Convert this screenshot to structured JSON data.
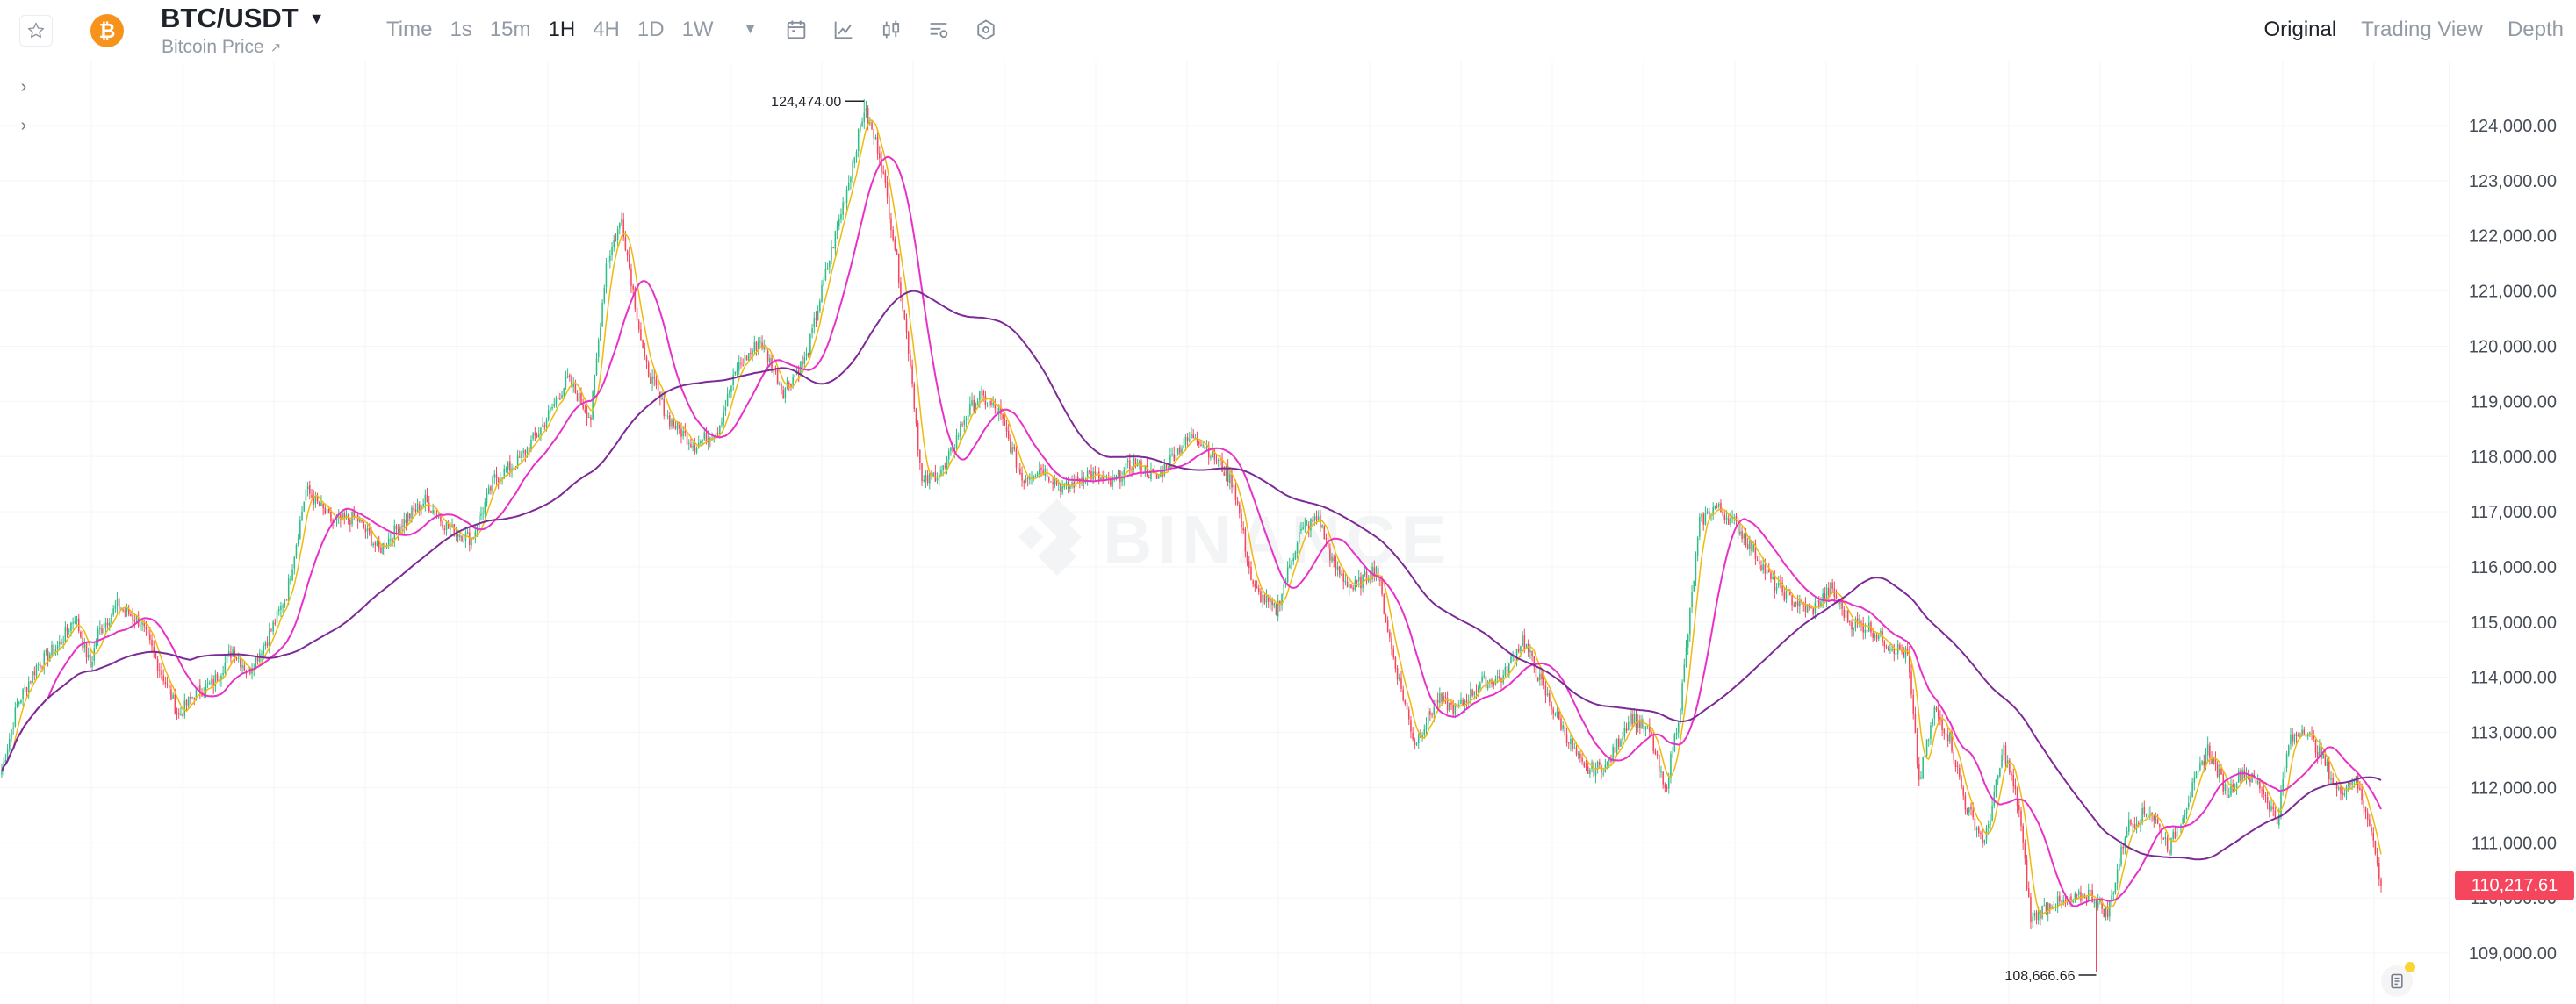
{
  "header": {
    "symbol": "BTC/USDT",
    "subtitle": "Bitcoin Price",
    "subtitle_icon": "external-link-icon",
    "favorite_icon": "star-icon",
    "coin_icon": "bitcoin-icon",
    "coin_glyph": "₿",
    "intervals": [
      "Time",
      "1s",
      "15m",
      "1H",
      "4H",
      "1D",
      "1W"
    ],
    "active_interval": "1H",
    "toolbar_icons": [
      "calendar-icon",
      "indicator-icon",
      "candle-type-icon",
      "chart-settings-icon",
      "hexagon-settings-icon"
    ],
    "view_tabs": [
      "Original",
      "Trading View",
      "Depth"
    ],
    "active_view": "Original"
  },
  "watermark": "BINANCE",
  "colors": {
    "up": "#2ebd85",
    "down": "#f6465d",
    "ma_fast": "#f0b90b",
    "ma_mid": "#e831c6",
    "ma_slow": "#7e2a96",
    "price_tag": "#f6465d"
  },
  "price_axis": {
    "ticks": [
      "124,000.00",
      "123,000.00",
      "122,000.00",
      "121,000.00",
      "120,000.00",
      "119,000.00",
      "118,000.00",
      "117,000.00",
      "116,000.00",
      "115,000.00",
      "114,000.00",
      "113,000.00",
      "112,000.00",
      "111,000.00",
      "110,000.00",
      "109,000.00"
    ],
    "current_price": "110,217.61"
  },
  "annotations": {
    "high": "124,474.00",
    "low": "108,666.66"
  },
  "chart_data": {
    "type": "candlestick",
    "interval": "1H",
    "ylim": [
      108400,
      124900
    ],
    "anchors": [
      [
        0,
        112300
      ],
      [
        8,
        113500
      ],
      [
        18,
        114200
      ],
      [
        30,
        114600
      ],
      [
        38,
        115100
      ],
      [
        46,
        114200
      ],
      [
        50,
        114800
      ],
      [
        60,
        115300
      ],
      [
        72,
        115000
      ],
      [
        84,
        114000
      ],
      [
        92,
        113300
      ],
      [
        100,
        113700
      ],
      [
        110,
        113900
      ],
      [
        120,
        114500
      ],
      [
        128,
        114100
      ],
      [
        138,
        114700
      ],
      [
        148,
        115500
      ],
      [
        158,
        117400
      ],
      [
        172,
        116800
      ],
      [
        184,
        116900
      ],
      [
        196,
        116300
      ],
      [
        208,
        116800
      ],
      [
        220,
        117200
      ],
      [
        232,
        116700
      ],
      [
        244,
        116500
      ],
      [
        256,
        117600
      ],
      [
        268,
        117900
      ],
      [
        280,
        118500
      ],
      [
        294,
        119400
      ],
      [
        306,
        118700
      ],
      [
        314,
        121500
      ],
      [
        322,
        122300
      ],
      [
        334,
        119700
      ],
      [
        346,
        118700
      ],
      [
        360,
        118200
      ],
      [
        372,
        118500
      ],
      [
        382,
        119600
      ],
      [
        394,
        120100
      ],
      [
        406,
        119200
      ],
      [
        418,
        119800
      ],
      [
        428,
        121300
      ],
      [
        440,
        123000
      ],
      [
        448,
        124300
      ],
      [
        456,
        123500
      ],
      [
        464,
        121800
      ],
      [
        472,
        119700
      ],
      [
        478,
        117500
      ],
      [
        490,
        117800
      ],
      [
        500,
        118700
      ],
      [
        508,
        119100
      ],
      [
        518,
        118800
      ],
      [
        530,
        117600
      ],
      [
        540,
        117800
      ],
      [
        552,
        117400
      ],
      [
        564,
        117700
      ],
      [
        576,
        117500
      ],
      [
        588,
        117900
      ],
      [
        600,
        117600
      ],
      [
        610,
        118100
      ],
      [
        620,
        118400
      ],
      [
        632,
        117900
      ],
      [
        640,
        117500
      ],
      [
        650,
        115600
      ],
      [
        662,
        115200
      ],
      [
        674,
        116600
      ],
      [
        684,
        116900
      ],
      [
        692,
        116000
      ],
      [
        702,
        115600
      ],
      [
        714,
        116000
      ],
      [
        722,
        114500
      ],
      [
        734,
        112800
      ],
      [
        746,
        113600
      ],
      [
        756,
        113400
      ],
      [
        768,
        113900
      ],
      [
        780,
        114000
      ],
      [
        790,
        114700
      ],
      [
        802,
        113700
      ],
      [
        812,
        113000
      ],
      [
        822,
        112300
      ],
      [
        834,
        112400
      ],
      [
        846,
        113300
      ],
      [
        856,
        113000
      ],
      [
        864,
        111900
      ],
      [
        872,
        113500
      ],
      [
        882,
        116800
      ],
      [
        890,
        117100
      ],
      [
        900,
        116800
      ],
      [
        910,
        116300
      ],
      [
        920,
        115700
      ],
      [
        930,
        115400
      ],
      [
        940,
        115200
      ],
      [
        950,
        115600
      ],
      [
        960,
        115000
      ],
      [
        970,
        114900
      ],
      [
        980,
        114600
      ],
      [
        990,
        114400
      ],
      [
        996,
        112100
      ],
      [
        1004,
        113400
      ],
      [
        1012,
        112900
      ],
      [
        1020,
        111700
      ],
      [
        1030,
        111000
      ],
      [
        1040,
        112700
      ],
      [
        1048,
        111600
      ],
      [
        1054,
        109600
      ],
      [
        1064,
        109900
      ],
      [
        1074,
        109900
      ],
      [
        1084,
        110100
      ],
      [
        1094,
        109700
      ],
      [
        1104,
        111300
      ],
      [
        1116,
        111600
      ],
      [
        1126,
        110900
      ],
      [
        1136,
        111800
      ],
      [
        1146,
        112700
      ],
      [
        1156,
        111900
      ],
      [
        1164,
        112300
      ],
      [
        1174,
        112000
      ],
      [
        1182,
        111400
      ],
      [
        1188,
        112800
      ],
      [
        1196,
        113100
      ],
      [
        1206,
        112500
      ],
      [
        1214,
        111900
      ],
      [
        1222,
        112200
      ],
      [
        1230,
        111400
      ],
      [
        1236,
        110200
      ]
    ],
    "count": 1237,
    "last_price": 110217.61,
    "high": 124474.0,
    "low": 108666.66,
    "moving_averages": [
      {
        "period": 7,
        "color": "#f0b90b"
      },
      {
        "period": 25,
        "color": "#e831c6"
      },
      {
        "period": 99,
        "color": "#7e2a96"
      }
    ]
  }
}
